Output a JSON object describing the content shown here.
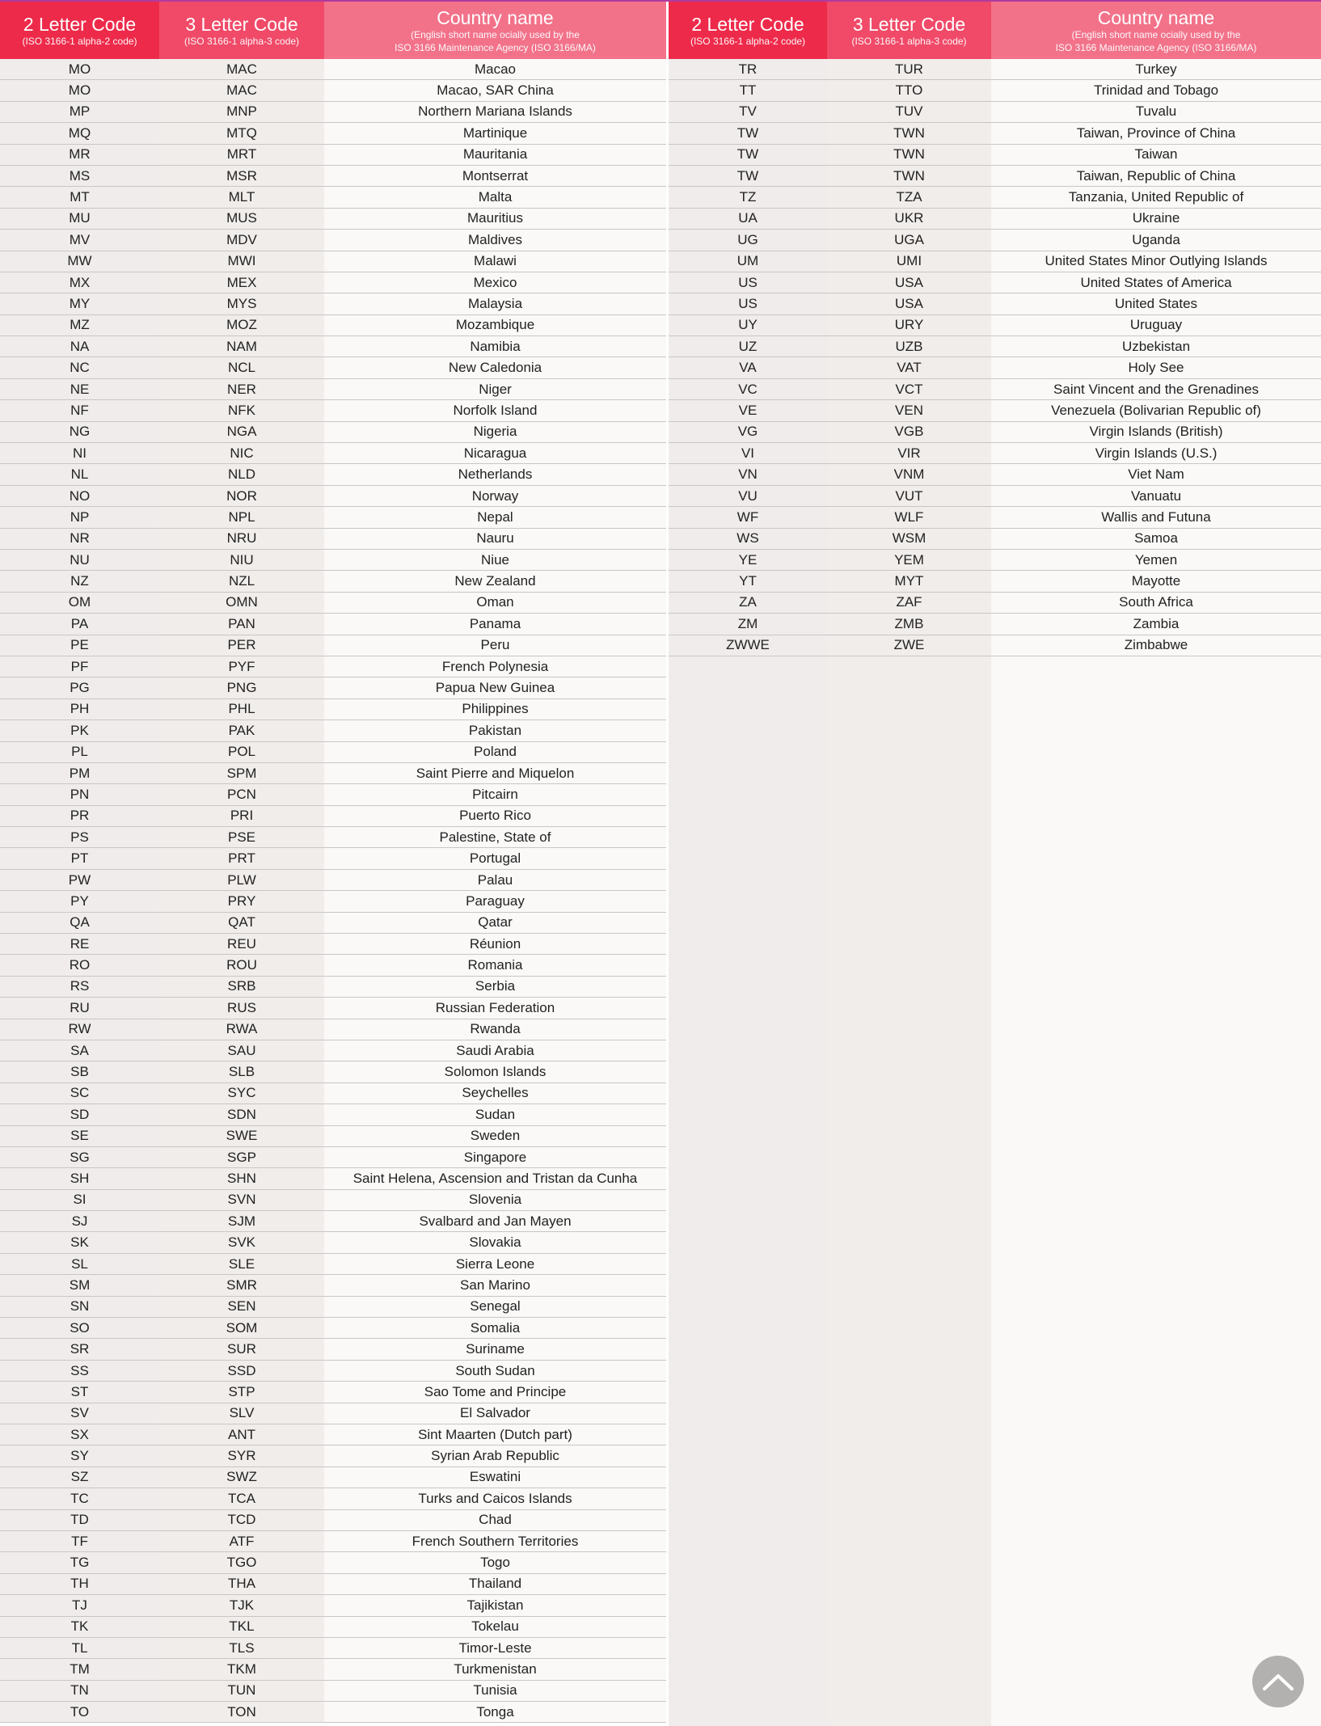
{
  "header": {
    "col1_title": "2 Letter Code",
    "col1_sub": "(ISO 3166-1 alpha-2 code)",
    "col2_title": "3 Letter Code",
    "col2_sub": "(ISO 3166-1 alpha-3 code)",
    "col3_title": "Country name",
    "col3_sub1": "(English short name ocially used by the",
    "col3_sub2": "ISO 3166 Maintenance Agency (ISO 3166/MA)"
  },
  "colors": {
    "header_col1": "#ee2a4a",
    "header_col2": "#f04a68",
    "header_col3": "#f2728a",
    "scroll_button": "#b3b1b0"
  },
  "left_rows": [
    [
      "MO",
      "MAC",
      "Macao"
    ],
    [
      "MO",
      "MAC",
      "Macao, SAR China"
    ],
    [
      "MP",
      "MNP",
      "Northern Mariana Islands"
    ],
    [
      "MQ",
      "MTQ",
      "Martinique"
    ],
    [
      "MR",
      "MRT",
      "Mauritania"
    ],
    [
      "MS",
      "MSR",
      "Montserrat"
    ],
    [
      "MT",
      "MLT",
      "Malta"
    ],
    [
      "MU",
      "MUS",
      "Mauritius"
    ],
    [
      "MV",
      "MDV",
      "Maldives"
    ],
    [
      "MW",
      "MWI",
      "Malawi"
    ],
    [
      "MX",
      "MEX",
      "Mexico"
    ],
    [
      "MY",
      "MYS",
      "Malaysia"
    ],
    [
      "MZ",
      "MOZ",
      "Mozambique"
    ],
    [
      "NA",
      "NAM",
      "Namibia"
    ],
    [
      "NC",
      "NCL",
      "New Caledonia"
    ],
    [
      "NE",
      "NER",
      "Niger"
    ],
    [
      "NF",
      "NFK",
      "Norfolk Island"
    ],
    [
      "NG",
      "NGA",
      "Nigeria"
    ],
    [
      "NI",
      "NIC",
      "Nicaragua"
    ],
    [
      "NL",
      "NLD",
      "Netherlands"
    ],
    [
      "NO",
      "NOR",
      "Norway"
    ],
    [
      "NP",
      "NPL",
      "Nepal"
    ],
    [
      "NR",
      "NRU",
      "Nauru"
    ],
    [
      "NU",
      "NIU",
      "Niue"
    ],
    [
      "NZ",
      "NZL",
      "New Zealand"
    ],
    [
      "OM",
      "OMN",
      "Oman"
    ],
    [
      "PA",
      "PAN",
      "Panama"
    ],
    [
      "PE",
      "PER",
      "Peru"
    ],
    [
      "PF",
      "PYF",
      "French Polynesia"
    ],
    [
      "PG",
      "PNG",
      "Papua New Guinea"
    ],
    [
      "PH",
      "PHL",
      "Philippines"
    ],
    [
      "PK",
      "PAK",
      "Pakistan"
    ],
    [
      "PL",
      "POL",
      "Poland"
    ],
    [
      "PM",
      "SPM",
      "Saint Pierre and Miquelon"
    ],
    [
      "PN",
      "PCN",
      "Pitcairn"
    ],
    [
      "PR",
      "PRI",
      "Puerto Rico"
    ],
    [
      "PS",
      "PSE",
      "Palestine, State of"
    ],
    [
      "PT",
      "PRT",
      "Portugal"
    ],
    [
      "PW",
      "PLW",
      "Palau"
    ],
    [
      "PY",
      "PRY",
      "Paraguay"
    ],
    [
      "QA",
      "QAT",
      "Qatar"
    ],
    [
      "RE",
      "REU",
      "Réunion"
    ],
    [
      "RO",
      "ROU",
      "Romania"
    ],
    [
      "RS",
      "SRB",
      "Serbia"
    ],
    [
      "RU",
      "RUS",
      "Russian Federation"
    ],
    [
      "RW",
      "RWA",
      "Rwanda"
    ],
    [
      "SA",
      "SAU",
      "Saudi Arabia"
    ],
    [
      "SB",
      "SLB",
      "Solomon Islands"
    ],
    [
      "SC",
      "SYC",
      "Seychelles"
    ],
    [
      "SD",
      "SDN",
      "Sudan"
    ],
    [
      "SE",
      "SWE",
      "Sweden"
    ],
    [
      "SG",
      "SGP",
      "Singapore"
    ],
    [
      "SH",
      "SHN",
      "Saint Helena, Ascension and Tristan da Cunha"
    ],
    [
      "SI",
      "SVN",
      "Slovenia"
    ],
    [
      "SJ",
      "SJM",
      "Svalbard and Jan Mayen"
    ],
    [
      "SK",
      "SVK",
      "Slovakia"
    ],
    [
      "SL",
      "SLE",
      "Sierra Leone"
    ],
    [
      "SM",
      "SMR",
      "San Marino"
    ],
    [
      "SN",
      "SEN",
      "Senegal"
    ],
    [
      "SO",
      "SOM",
      "Somalia"
    ],
    [
      "SR",
      "SUR",
      "Suriname"
    ],
    [
      "SS",
      "SSD",
      "South Sudan"
    ],
    [
      "ST",
      "STP",
      "Sao Tome and Principe"
    ],
    [
      "SV",
      "SLV",
      "El Salvador"
    ],
    [
      "SX",
      "ANT",
      "Sint Maarten (Dutch part)"
    ],
    [
      "SY",
      "SYR",
      "Syrian Arab Republic"
    ],
    [
      "SZ",
      "SWZ",
      "Eswatini"
    ],
    [
      "TC",
      "TCA",
      "Turks and Caicos Islands"
    ],
    [
      "TD",
      "TCD",
      "Chad"
    ],
    [
      "TF",
      "ATF",
      "French Southern Territories"
    ],
    [
      "TG",
      "TGO",
      "Togo"
    ],
    [
      "TH",
      "THA",
      "Thailand"
    ],
    [
      "TJ",
      "TJK",
      "Tajikistan"
    ],
    [
      "TK",
      "TKL",
      "Tokelau"
    ],
    [
      "TL",
      "TLS",
      "Timor-Leste"
    ],
    [
      "TM",
      "TKM",
      "Turkmenistan"
    ],
    [
      "TN",
      "TUN",
      "Tunisia"
    ],
    [
      "TO",
      "TON",
      "Tonga"
    ]
  ],
  "right_rows": [
    [
      "TR",
      "TUR",
      "Turkey"
    ],
    [
      "TT",
      "TTO",
      "Trinidad and Tobago"
    ],
    [
      "TV",
      "TUV",
      "Tuvalu"
    ],
    [
      "TW",
      "TWN",
      "Taiwan, Province of China"
    ],
    [
      "TW",
      "TWN",
      "Taiwan"
    ],
    [
      "TW",
      "TWN",
      "Taiwan, Republic of China"
    ],
    [
      "TZ",
      "TZA",
      "Tanzania, United Republic of"
    ],
    [
      "UA",
      "UKR",
      "Ukraine"
    ],
    [
      "UG",
      "UGA",
      "Uganda"
    ],
    [
      "UM",
      "UMI",
      "United States Minor Outlying Islands"
    ],
    [
      "US",
      "USA",
      "United States of America"
    ],
    [
      "US",
      "USA",
      "United States"
    ],
    [
      "UY",
      "URY",
      "Uruguay"
    ],
    [
      "UZ",
      "UZB",
      "Uzbekistan"
    ],
    [
      "VA",
      "VAT",
      "Holy See"
    ],
    [
      "VC",
      "VCT",
      "Saint Vincent and the Grenadines"
    ],
    [
      "VE",
      "VEN",
      "Venezuela (Bolivarian Republic of)"
    ],
    [
      "VG",
      "VGB",
      "Virgin Islands (British)"
    ],
    [
      "VI",
      "VIR",
      "Virgin Islands (U.S.)"
    ],
    [
      "VN",
      "VNM",
      "Viet Nam"
    ],
    [
      "VU",
      "VUT",
      "Vanuatu"
    ],
    [
      "WF",
      "WLF",
      "Wallis and Futuna"
    ],
    [
      "WS",
      "WSM",
      "Samoa"
    ],
    [
      "YE",
      "YEM",
      "Yemen"
    ],
    [
      "YT",
      "MYT",
      "Mayotte"
    ],
    [
      "ZA",
      "ZAF",
      "South Africa"
    ],
    [
      "ZM",
      "ZMB",
      "Zambia"
    ],
    [
      "ZWWE",
      "ZWE",
      "Zimbabwe"
    ]
  ],
  "scroll_top_icon": "chevron-up-icon"
}
